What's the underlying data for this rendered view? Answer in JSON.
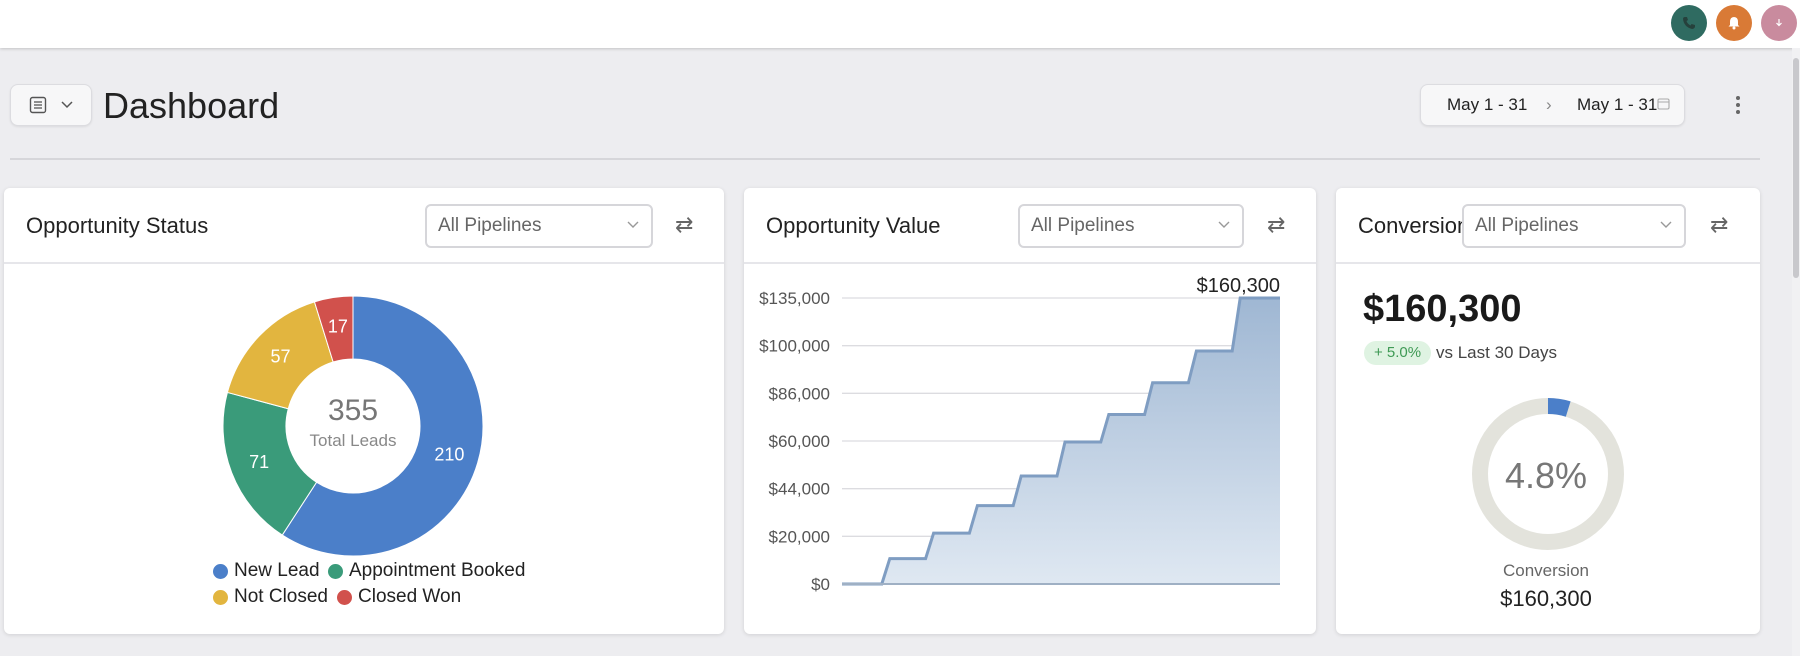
{
  "header": {
    "title": "Dashboard",
    "date_from": "May 1 - 31",
    "date_to": "May 1 - 31",
    "avatars": [
      {
        "name": "phone-icon",
        "color": "#2f6b61"
      },
      {
        "name": "bell-icon",
        "color": "#d97a36"
      },
      {
        "name": "user-avatar",
        "color": "#c98b9e"
      }
    ]
  },
  "cards": {
    "status": {
      "title": "Opportunity Status",
      "pipeline": "All Pipelines",
      "donut": {
        "total": "355",
        "total_label": "Total Leads",
        "slices": [
          {
            "label": "New Lead",
            "value": 210,
            "color": "#4b7fc9"
          },
          {
            "label": "Appointment Booked",
            "value": 71,
            "color": "#3a9b7a"
          },
          {
            "label": "Not Closed",
            "value": 57,
            "color": "#e2b53f"
          },
          {
            "label": "Closed Won",
            "value": 17,
            "color": "#d1514c"
          }
        ]
      },
      "legend": [
        {
          "label": "New Lead",
          "color": "#4b7fc9"
        },
        {
          "label": "Appointment Booked",
          "color": "#3a9b7a"
        },
        {
          "label": "Not Closed",
          "color": "#e2b53f"
        },
        {
          "label": "Closed Won",
          "color": "#d1514c"
        }
      ]
    },
    "value": {
      "title": "Opportunity Value",
      "pipeline": "All Pipelines",
      "peak_label": "$160,300"
    },
    "conversion": {
      "title": "Conversion",
      "pipeline": "All Pipelines",
      "amount": "$160,300",
      "change": "+ 5.0%",
      "change_suffix": "vs Last 30 Days",
      "rate": "4.8%",
      "rate_value": 4.8,
      "footer_label": "Conversion",
      "footer_value": "$160,300"
    }
  },
  "chart_data": [
    {
      "type": "pie",
      "title": "Opportunity Status",
      "categories": [
        "New Lead",
        "Appointment Booked",
        "Not Closed",
        "Closed Won"
      ],
      "values": [
        210,
        71,
        57,
        17
      ]
    },
    {
      "type": "area",
      "title": "Opportunity Value",
      "ytick_labels": [
        "$0",
        "$20,000",
        "$44,000",
        "$60,000",
        "$86,000",
        "$100,000",
        "$135,000"
      ],
      "steps": [
        0,
        12000,
        24000,
        37000,
        51000,
        67000,
        80000,
        95000,
        110000,
        135000
      ],
      "annotation": "$160,300",
      "xlabel": "",
      "ylabel": ""
    }
  ]
}
